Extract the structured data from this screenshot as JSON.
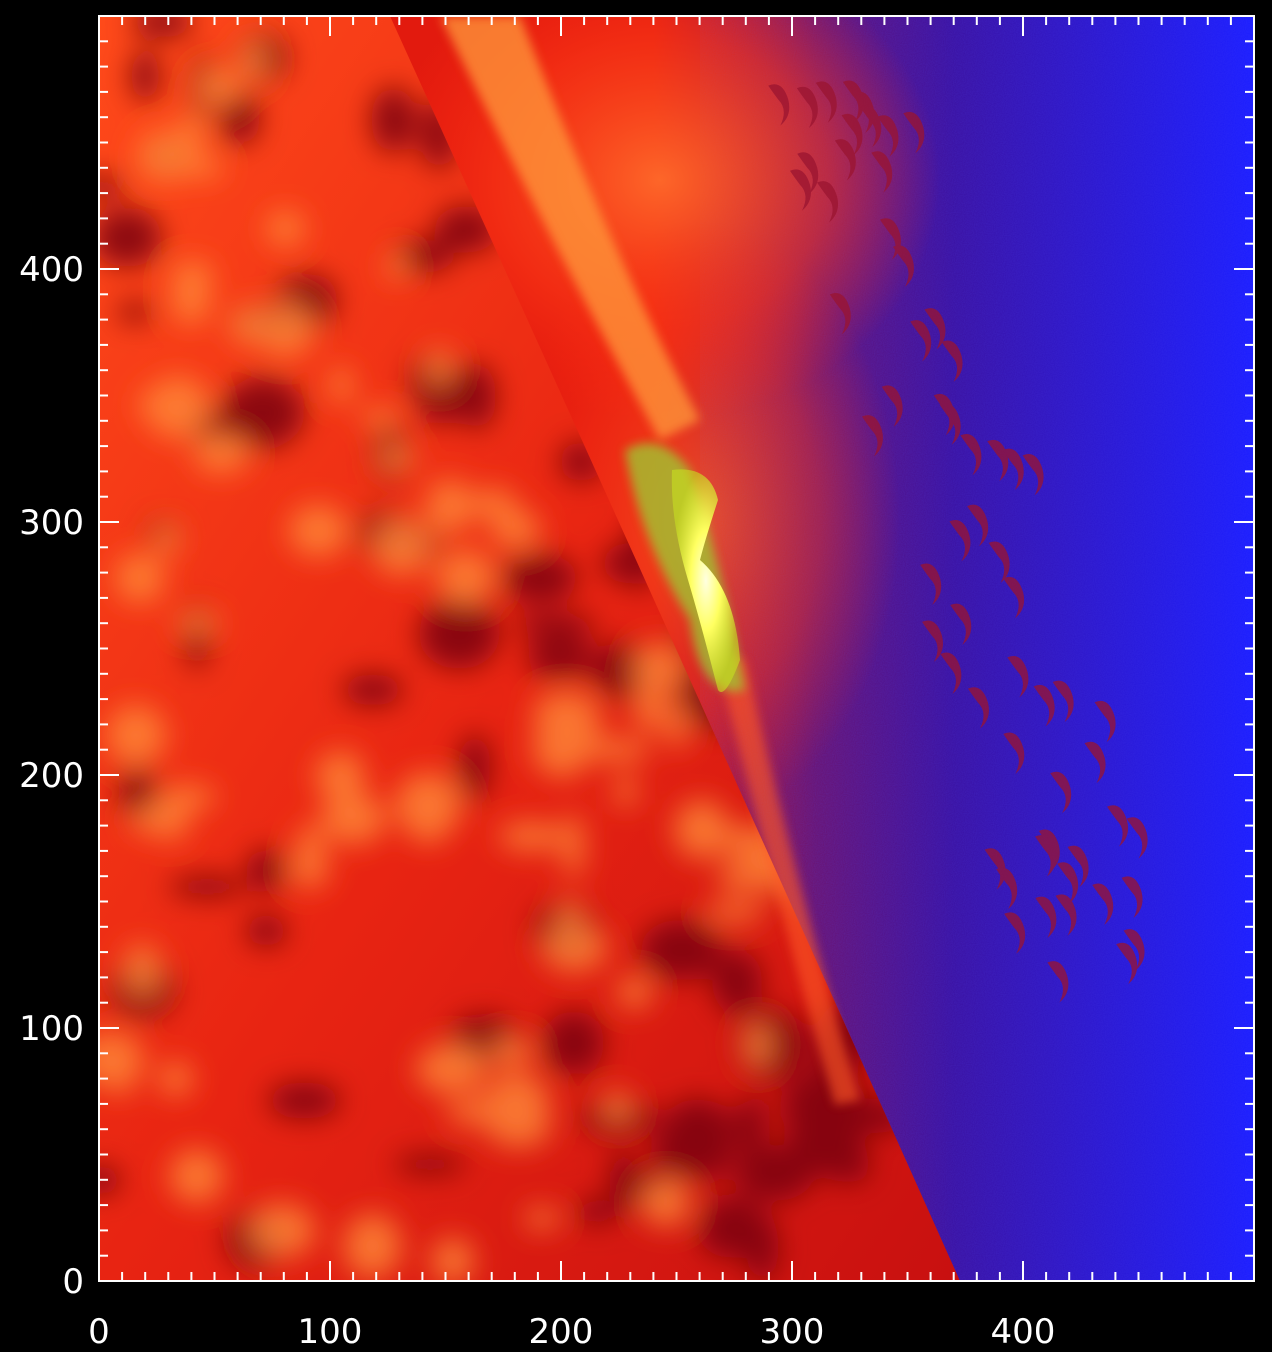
{
  "image": {
    "subject": "solar-limb-flare-false-color",
    "colors": {
      "disk_dark": "#7a0010",
      "disk_red": "#e41a0c",
      "disk_bright": "#ff7a2a",
      "limb_glow": "#ff5a1e",
      "flare_core": "#ffff60",
      "flare_green": "#9ccc30",
      "space_purple": "#3a10a0",
      "space_blue": "#1a1cff",
      "axes": "#ffffff",
      "background": "#000000"
    }
  },
  "chart_data": {
    "type": "heatmap",
    "xlim": [
      0,
      500
    ],
    "ylim": [
      0,
      500
    ],
    "x_ticks": [
      {
        "value": 0,
        "label": "0"
      },
      {
        "value": 100,
        "label": "100"
      },
      {
        "value": 200,
        "label": "200"
      },
      {
        "value": 300,
        "label": "300"
      },
      {
        "value": 400,
        "label": "400"
      }
    ],
    "y_ticks": [
      {
        "value": 0,
        "label": "0"
      },
      {
        "value": 100,
        "label": "100"
      },
      {
        "value": 200,
        "label": "200"
      },
      {
        "value": 300,
        "label": "300"
      },
      {
        "value": 400,
        "label": "400"
      }
    ],
    "minor_tick_step": 10,
    "grid": false
  }
}
